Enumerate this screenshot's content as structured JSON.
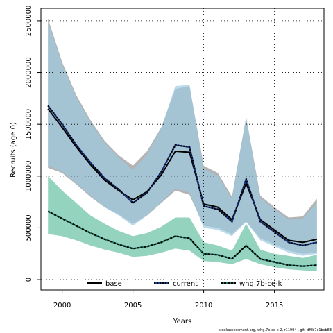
{
  "chart_data": {
    "type": "line",
    "xlabel": "Years",
    "ylabel": "Recruits (age 0)",
    "xlim": [
      1998.5,
      2018.5
    ],
    "ylim": [
      -100000,
      2620000
    ],
    "x_ticks": [
      2000,
      2005,
      2010,
      2015
    ],
    "y_ticks": [
      0,
      500000,
      1000000,
      1500000,
      2000000,
      2500000
    ],
    "grid": true,
    "legend_position": "bottom",
    "x": [
      1999,
      2000,
      2001,
      2002,
      2003,
      2004,
      2005,
      2006,
      2007,
      2008,
      2009,
      2010,
      2011,
      2012,
      2013,
      2014,
      2015,
      2016,
      2017,
      2018
    ],
    "series": [
      {
        "name": "base",
        "color": "#000000",
        "band_color": "#a6a6a6",
        "line_style": "solid",
        "values": [
          1650000,
          1470000,
          1280000,
          1110000,
          960000,
          860000,
          770000,
          850000,
          1010000,
          1240000,
          1230000,
          730000,
          700000,
          580000,
          930000,
          580000,
          480000,
          380000,
          360000,
          390000
        ],
        "lower": [
          1080000,
          1030000,
          920000,
          800000,
          700000,
          630000,
          540000,
          620000,
          740000,
          860000,
          820000,
          520000,
          500000,
          440000,
          560000,
          400000,
          340000,
          280000,
          250000,
          260000
        ],
        "upper": [
          2520000,
          2100000,
          1780000,
          1540000,
          1340000,
          1200000,
          1100000,
          1240000,
          1470000,
          1840000,
          1870000,
          1100000,
          1030000,
          800000,
          1570000,
          810000,
          700000,
          600000,
          610000,
          780000
        ]
      },
      {
        "name": "current",
        "color": "#1b3a8c",
        "band_color": "#9ecae1",
        "line_style": "dotted",
        "values": [
          1680000,
          1500000,
          1300000,
          1130000,
          980000,
          870000,
          740000,
          840000,
          1040000,
          1300000,
          1280000,
          710000,
          680000,
          560000,
          970000,
          560000,
          460000,
          360000,
          330000,
          360000
        ],
        "lower": [
          1100000,
          1040000,
          930000,
          810000,
          700000,
          620000,
          520000,
          620000,
          750000,
          880000,
          840000,
          500000,
          480000,
          420000,
          560000,
          380000,
          320000,
          260000,
          230000,
          250000
        ],
        "upper": [
          2490000,
          2080000,
          1760000,
          1520000,
          1320000,
          1180000,
          1060000,
          1210000,
          1460000,
          1870000,
          1880000,
          1070000,
          1000000,
          780000,
          1560000,
          790000,
          680000,
          580000,
          590000,
          740000
        ]
      },
      {
        "name": "whg.7b-ce-k",
        "color": "#1a7a6a",
        "band_color": "#66c2a4",
        "line_style": "dashed",
        "values": [
          660000,
          590000,
          520000,
          450000,
          390000,
          340000,
          300000,
          320000,
          360000,
          420000,
          400000,
          250000,
          240000,
          200000,
          330000,
          200000,
          170000,
          140000,
          130000,
          140000
        ],
        "lower": [
          440000,
          420000,
          380000,
          330000,
          290000,
          260000,
          220000,
          230000,
          260000,
          300000,
          280000,
          180000,
          170000,
          150000,
          200000,
          150000,
          120000,
          100000,
          90000,
          80000
        ],
        "upper": [
          1000000,
          860000,
          740000,
          620000,
          540000,
          470000,
          420000,
          450000,
          510000,
          600000,
          600000,
          360000,
          330000,
          280000,
          540000,
          290000,
          250000,
          230000,
          210000,
          240000
        ]
      }
    ]
  },
  "footer": "stockassessment.org, whg.7b-ce-k 2, r11994 , git: df0b7c1bcb83"
}
